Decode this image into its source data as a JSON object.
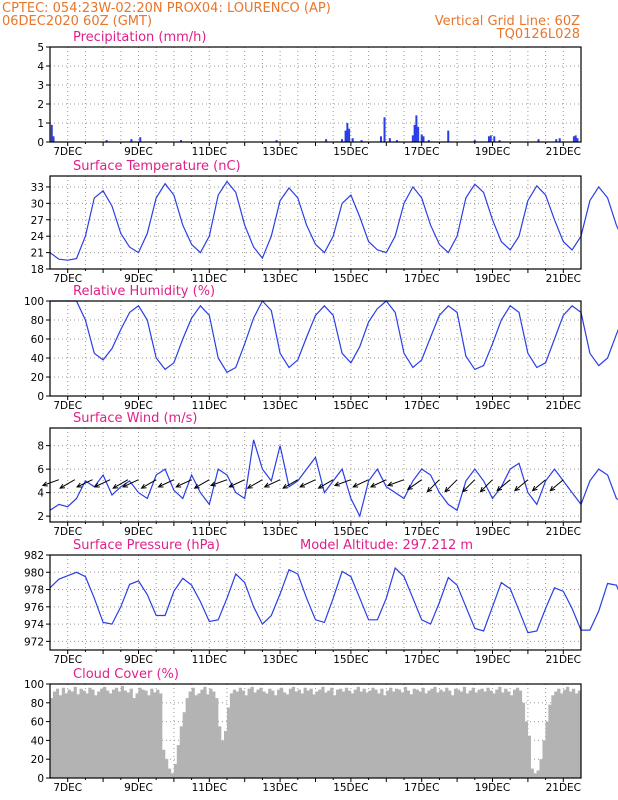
{
  "header": {
    "line1_left": "CPTEC:  054:23W-02:20N  PROX04: LOURENCO (AP)",
    "line2_left": "06DEC2020 60Z (GMT)",
    "line2_right": "Vertical Grid Line: 60Z",
    "line3_right": "TQ0126L028"
  },
  "colors": {
    "header": "#e8762c",
    "title": "#e0208a",
    "series": "#2b3ee6",
    "cloud": "#b3b3b3",
    "grid": "#9a9a9a"
  },
  "x_labels": [
    "7DEC",
    "9DEC",
    "11DEC",
    "13DEC",
    "15DEC",
    "17DEC",
    "19DEC",
    "21DEC"
  ],
  "chart_data": [
    {
      "id": "precip",
      "type": "bar",
      "title": "Precipitation (mm/h)",
      "ylim": [
        0,
        5
      ],
      "yticks": [
        0,
        1,
        2,
        3,
        4,
        5
      ],
      "x_range_days": [
        6.5,
        21.5
      ],
      "points": [
        [
          6.55,
          0.9
        ],
        [
          6.6,
          0.3
        ],
        [
          8.1,
          0.1
        ],
        [
          8.8,
          0.15
        ],
        [
          9.05,
          0.25
        ],
        [
          10.2,
          0.1
        ],
        [
          12.9,
          0.1
        ],
        [
          14.3,
          0.15
        ],
        [
          14.75,
          0.15
        ],
        [
          14.85,
          0.6
        ],
        [
          14.9,
          1.0
        ],
        [
          14.95,
          0.7
        ],
        [
          15.05,
          0.2
        ],
        [
          15.3,
          0.1
        ],
        [
          15.85,
          0.3
        ],
        [
          15.95,
          1.3
        ],
        [
          16.1,
          0.2
        ],
        [
          16.3,
          0.1
        ],
        [
          16.75,
          0.35
        ],
        [
          16.8,
          0.9
        ],
        [
          16.85,
          1.4
        ],
        [
          16.9,
          0.8
        ],
        [
          17.0,
          0.4
        ],
        [
          17.05,
          0.3
        ],
        [
          17.2,
          0.1
        ],
        [
          17.75,
          0.6
        ],
        [
          18.5,
          0.1
        ],
        [
          18.9,
          0.3
        ],
        [
          18.95,
          0.35
        ],
        [
          19.05,
          0.3
        ],
        [
          19.2,
          0.1
        ],
        [
          20.3,
          0.15
        ],
        [
          20.8,
          0.15
        ],
        [
          20.9,
          0.2
        ],
        [
          21.3,
          0.3
        ],
        [
          21.35,
          0.35
        ],
        [
          21.4,
          0.2
        ]
      ]
    },
    {
      "id": "temp",
      "type": "line",
      "title": "Surface Temperature (nC)",
      "ylim": [
        18,
        35
      ],
      "yticks": [
        18,
        21,
        24,
        27,
        30,
        33
      ],
      "x0": 6.5,
      "dx": 0.25,
      "values": [
        21,
        19.8,
        19.6,
        19.9,
        24,
        31,
        32.3,
        29.5,
        24.5,
        22,
        21,
        24.5,
        31,
        33.6,
        31.5,
        26,
        22.5,
        21,
        24,
        31.5,
        34,
        32,
        26,
        22,
        20,
        24,
        30.5,
        32.8,
        31,
        26,
        22.5,
        21,
        24,
        30,
        31.5,
        27.5,
        23,
        21.5,
        21,
        24,
        30,
        33,
        31,
        26,
        22.5,
        21,
        24,
        31,
        33.5,
        32,
        27,
        23,
        21.5,
        24,
        30.5,
        33.2,
        31.5,
        27,
        23,
        21.5,
        24,
        30.5,
        33,
        31,
        26,
        22.5,
        21.5,
        24,
        30.5,
        32.5,
        30.5,
        26,
        22.5,
        21.5,
        24,
        30.5,
        33.2,
        31,
        26.5,
        23,
        22,
        24,
        30.5,
        32,
        30,
        26,
        23,
        22,
        24,
        30.5,
        32,
        30,
        25.5,
        22.5,
        21.5,
        24,
        30.5,
        31.5,
        30,
        26,
        22.5,
        21,
        24,
        30,
        31,
        29,
        25,
        22,
        21,
        24,
        30,
        31.5,
        29.5,
        25.5,
        22.5,
        21.5,
        24,
        29.5,
        31,
        29.5,
        25
      ]
    },
    {
      "id": "rh",
      "type": "line",
      "title": "Relative Humidity (%)",
      "ylim": [
        0,
        100
      ],
      "yticks": [
        0,
        20,
        40,
        60,
        80,
        100
      ],
      "x0": 6.5,
      "dx": 0.25,
      "values": [
        100,
        100,
        100,
        100,
        80,
        45,
        38,
        50,
        70,
        88,
        95,
        80,
        40,
        28,
        35,
        60,
        82,
        95,
        85,
        40,
        25,
        30,
        55,
        82,
        100,
        90,
        45,
        30,
        38,
        62,
        85,
        95,
        85,
        45,
        35,
        52,
        78,
        92,
        100,
        88,
        45,
        30,
        38,
        62,
        85,
        95,
        88,
        42,
        28,
        32,
        55,
        80,
        95,
        88,
        45,
        30,
        35,
        60,
        85,
        95,
        88,
        45,
        32,
        40,
        65,
        88,
        95,
        85,
        45,
        35,
        42,
        66,
        88,
        96,
        88,
        45,
        30,
        38,
        62,
        86,
        96,
        88,
        48,
        38,
        46,
        70,
        90,
        98,
        88,
        47,
        36,
        44,
        70,
        90,
        98,
        90,
        45,
        36,
        46,
        72,
        92,
        100,
        92,
        50,
        42,
        50,
        75,
        93,
        100,
        92,
        50,
        40,
        46,
        70,
        90,
        98,
        90,
        50,
        40,
        46,
        75
      ]
    },
    {
      "id": "wind",
      "type": "line",
      "title": "Surface Wind (m/s)",
      "ylim": [
        1.5,
        9.5
      ],
      "yticks": [
        2,
        4,
        6,
        8
      ],
      "x0": 6.5,
      "dx": 0.25,
      "values": [
        2.5,
        3,
        2.8,
        3.5,
        5,
        4.5,
        5.5,
        3.8,
        4.5,
        5,
        4,
        3.5,
        5.5,
        6,
        4.2,
        3.5,
        5.5,
        4,
        3,
        6,
        5.5,
        4,
        3.5,
        8.5,
        6,
        5,
        8,
        4.5,
        5,
        6,
        7,
        4,
        5,
        6,
        3.5,
        2,
        5,
        6,
        4.5,
        4,
        3.5,
        5,
        6,
        5.5,
        4,
        3,
        2.5,
        5,
        6,
        5,
        3.5,
        4.5,
        6,
        6.5,
        4,
        3,
        5,
        6,
        5,
        4,
        3,
        5,
        6,
        5.5,
        3.5,
        3,
        6,
        7,
        5,
        4,
        3.5,
        5,
        6,
        6,
        4,
        3,
        5.5,
        6.5,
        5,
        4,
        3,
        4.5,
        6,
        5.5,
        4,
        3,
        5,
        6.5,
        5,
        4,
        2.5,
        5,
        6,
        5,
        4.5,
        3,
        5,
        6,
        5,
        4,
        3,
        5,
        6.5,
        5.5,
        4,
        2.5,
        5.5,
        7,
        5.5,
        4,
        3,
        5,
        7,
        5.5,
        4,
        3,
        5,
        6.5,
        5,
        4,
        4.5
      ],
      "arrow_days": [
        6.75,
        7.2,
        7.7,
        8.2,
        8.7,
        9.0,
        9.5,
        10.0,
        10.5,
        11.0,
        11.5,
        12.0,
        12.5,
        13.0,
        13.5,
        14.0,
        14.5,
        15.0,
        15.5,
        16.0,
        16.5,
        17.0,
        17.5,
        18.0,
        18.5,
        19.0,
        19.5,
        20.0,
        20.5,
        21.0
      ],
      "arrow_dirs_deg": [
        200,
        210,
        205,
        205,
        210,
        205,
        210,
        205,
        205,
        210,
        200,
        205,
        210,
        205,
        210,
        205,
        210,
        200,
        205,
        205,
        200,
        215,
        225,
        225,
        225,
        225,
        220,
        220,
        220,
        220
      ]
    },
    {
      "id": "pres",
      "type": "line",
      "title": "Surface Pressure (hPa)",
      "subtitle": "Model Altitude: 297.212 m",
      "ylim": [
        971,
        982
      ],
      "yticks": [
        972,
        974,
        976,
        978,
        980,
        982
      ],
      "x0": 6.5,
      "dx": 0.25,
      "values": [
        978.2,
        979.2,
        979.6,
        980,
        979.5,
        977,
        974.2,
        974,
        976,
        978.6,
        979,
        977.4,
        975,
        975,
        977.8,
        979.3,
        978.5,
        976.6,
        974.3,
        974.5,
        977,
        979.8,
        978.8,
        976,
        974,
        975,
        977.5,
        980.3,
        979.8,
        977,
        974.5,
        974.2,
        977,
        980.1,
        979.5,
        977,
        974.5,
        974.5,
        977,
        980.5,
        979.5,
        977,
        974.5,
        974,
        976.5,
        979.4,
        978.5,
        976,
        973.5,
        973.2,
        976,
        978.8,
        978.1,
        975.6,
        973,
        973.2,
        975.8,
        978.2,
        977.8,
        975.8,
        973.3,
        973.3,
        975.5,
        978.7,
        978.5,
        976,
        973,
        972.6,
        975,
        978.6,
        978.5,
        976,
        973.5,
        973.2,
        975.5,
        978.1,
        977.5,
        975.2,
        973.2,
        973.4,
        975.6,
        978.5,
        977.5,
        975.3,
        973.5,
        973.5,
        975.6,
        978.3,
        977.5,
        975.2,
        972.8,
        972.7,
        975.2,
        977.5,
        976.7,
        974.6,
        972.2,
        972.5,
        974.8,
        977.2,
        976.5,
        974.5,
        972.3,
        972.1,
        974.4,
        977.5,
        976.8,
        974.3,
        972.2,
        971.2,
        973.8,
        976.8,
        976,
        974,
        971.6,
        971.2,
        971.2,
        971.2,
        971.5,
        972.3,
        974
      ]
    },
    {
      "id": "cloud",
      "type": "bar",
      "title": "Cloud Cover (%)",
      "ylim": [
        0,
        100
      ],
      "yticks": [
        0,
        20,
        40,
        60,
        80,
        100
      ],
      "x0": 6.5,
      "dx": 0.0833,
      "values": [
        85,
        92,
        95,
        88,
        96,
        90,
        94,
        92,
        97,
        89,
        95,
        93,
        90,
        96,
        94,
        88,
        92,
        95,
        97,
        93,
        90,
        94,
        96,
        92,
        98,
        93,
        91,
        95,
        85,
        90,
        96,
        94,
        93,
        88,
        95,
        91,
        94,
        90,
        30,
        20,
        10,
        5,
        15,
        35,
        55,
        70,
        85,
        92,
        96,
        88,
        90,
        94,
        97,
        89,
        95,
        92,
        85,
        55,
        40,
        50,
        75,
        90,
        94,
        92,
        96,
        93,
        88,
        95,
        97,
        91,
        94,
        96,
        92,
        90,
        95,
        93,
        88,
        94,
        96,
        91,
        89,
        95,
        97,
        92,
        94,
        90,
        96,
        93,
        95,
        89,
        92,
        94,
        97,
        91,
        93,
        96,
        88,
        94,
        95,
        92,
        96,
        93,
        90,
        94,
        97,
        92,
        95,
        91,
        93,
        96,
        94,
        90,
        95,
        88,
        93,
        96,
        92,
        95,
        94,
        91,
        97,
        93,
        89,
        95,
        94,
        92,
        96,
        90,
        93,
        95,
        97,
        91,
        94,
        92,
        96,
        93,
        88,
        95,
        94,
        92,
        97,
        90,
        93,
        96,
        91,
        94,
        95,
        92,
        96,
        93,
        90,
        94,
        97,
        91,
        95,
        92,
        88,
        94,
        96,
        93,
        80,
        60,
        45,
        10,
        5,
        8,
        20,
        40,
        60,
        78,
        88,
        92,
        95,
        90,
        94,
        97,
        92,
        95,
        90,
        93,
        96,
        94,
        91,
        95,
        88,
        93,
        96,
        92,
        94,
        97,
        91,
        95,
        93,
        90,
        96,
        92,
        94,
        88,
        95,
        93,
        97,
        91,
        94,
        92,
        96,
        90,
        93,
        95,
        94,
        92,
        97,
        91,
        95,
        90,
        93,
        96,
        92,
        94,
        95,
        91,
        97,
        93,
        90,
        94,
        96,
        92,
        95,
        91,
        93,
        97,
        94,
        90,
        95,
        92,
        96,
        93,
        91,
        94,
        97,
        92,
        95,
        90,
        93,
        96,
        94,
        91,
        95,
        92,
        97,
        93,
        90,
        94,
        96,
        91,
        95,
        93,
        92,
        97,
        94,
        90,
        95,
        92,
        96,
        93,
        88,
        94,
        97,
        91,
        95,
        92,
        93,
        96,
        90,
        94,
        95,
        92,
        97,
        91,
        93,
        96,
        94,
        90,
        95,
        92,
        93,
        97,
        91,
        94,
        96,
        92,
        95,
        90,
        93,
        97,
        94,
        91,
        95,
        92,
        96,
        93,
        90,
        94,
        97,
        92,
        95,
        91,
        93,
        96,
        94,
        90,
        95,
        92,
        97,
        93,
        88,
        94,
        96,
        92,
        95,
        91,
        93,
        97,
        94,
        90,
        95,
        92,
        96,
        93,
        91,
        94,
        97,
        92,
        95,
        90,
        93,
        96,
        94,
        91,
        95,
        92,
        97,
        93,
        90,
        94,
        96,
        91,
        95,
        93,
        92,
        97,
        94,
        90,
        95,
        92,
        96,
        93,
        88,
        94,
        97,
        91,
        95,
        92,
        93,
        96,
        90,
        94,
        95,
        92,
        97,
        91,
        93,
        96,
        94,
        90,
        95,
        92,
        93,
        97,
        91,
        94,
        96,
        92,
        95,
        90,
        93,
        97,
        94,
        91,
        95,
        92,
        96,
        93,
        90,
        94,
        97,
        92,
        95,
        91,
        93,
        96,
        94,
        90,
        95,
        92,
        97,
        93,
        88,
        94,
        96,
        92,
        95,
        91,
        93,
        97,
        94,
        90,
        95,
        92,
        96,
        93,
        91,
        94,
        97,
        92,
        95,
        90,
        93,
        96,
        94,
        91,
        95,
        92,
        97,
        93,
        90,
        94,
        96,
        91,
        95,
        93,
        92,
        97,
        94,
        90,
        95,
        92,
        96,
        93,
        88,
        94,
        97,
        91,
        95,
        92,
        93,
        96,
        90,
        94,
        95,
        92,
        97,
        91,
        93,
        96,
        94,
        90,
        95,
        92,
        93,
        97,
        91,
        94,
        96,
        92,
        95,
        90,
        93,
        97,
        94,
        91,
        95,
        92,
        96,
        93,
        90,
        94,
        97,
        92,
        95,
        91,
        93,
        96,
        94,
        90,
        95,
        92,
        97,
        93,
        88,
        94,
        96,
        92,
        95,
        91,
        93,
        97,
        94,
        90,
        95,
        92,
        96,
        93,
        91,
        94,
        97,
        92,
        95,
        90,
        93,
        96,
        94,
        91,
        95,
        92,
        97,
        93,
        90,
        94,
        96,
        91,
        95,
        93,
        92,
        97,
        94,
        90,
        95,
        92,
        96,
        93,
        88,
        94,
        97,
        91,
        95,
        92,
        93,
        96,
        90,
        94,
        95,
        92,
        97,
        91,
        93,
        96,
        94,
        90,
        95,
        92,
        93,
        97,
        91,
        94,
        96,
        92,
        95,
        90,
        93,
        97,
        94,
        91,
        95,
        92,
        96,
        93,
        90,
        94,
        97,
        92,
        95,
        91,
        93,
        96,
        94,
        90,
        95,
        92,
        97,
        93,
        88,
        94,
        96,
        92,
        95,
        91,
        93,
        97,
        94,
        90,
        95,
        92,
        96,
        93,
        91,
        94,
        97,
        92,
        95,
        90,
        93,
        96,
        94,
        91,
        95,
        92,
        97,
        93,
        90,
        94,
        96,
        91,
        95,
        93,
        92,
        97,
        94,
        90,
        95,
        92,
        96,
        93,
        88,
        94,
        97,
        91,
        95,
        92,
        93,
        96,
        90,
        94,
        95,
        92,
        97,
        91,
        93,
        96,
        94,
        90,
        95,
        92,
        93,
        97,
        91,
        94,
        96,
        92,
        95,
        90,
        93,
        97,
        94,
        91,
        95,
        92,
        96,
        93,
        90,
        94,
        97,
        92,
        95,
        91,
        93,
        96,
        94,
        90,
        95,
        92,
        97,
        93,
        88,
        94,
        96,
        92,
        95,
        91,
        93,
        97,
        94,
        90,
        95,
        92,
        96,
        93,
        91,
        94,
        97,
        92
      ]
    }
  ]
}
